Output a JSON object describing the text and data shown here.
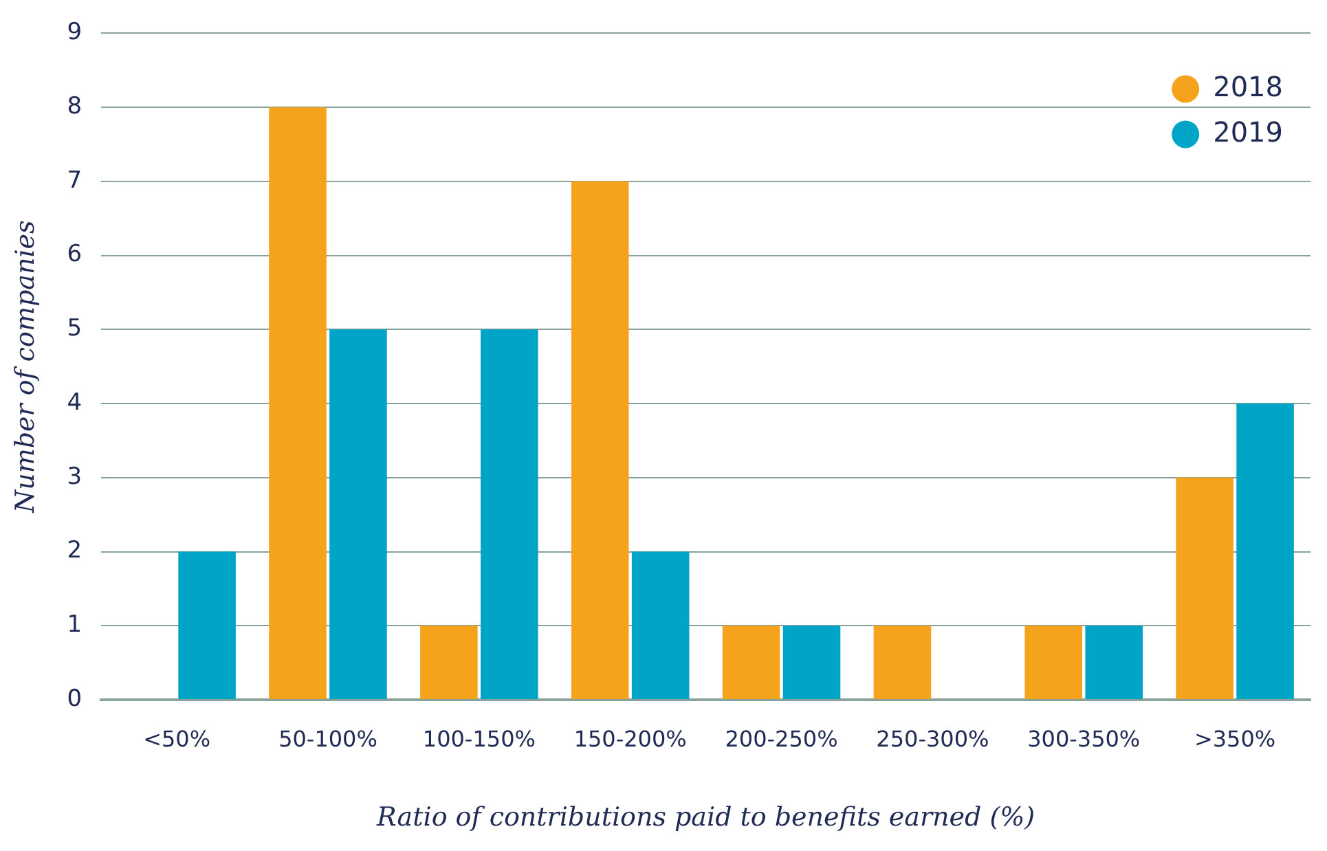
{
  "chart_data": {
    "type": "bar",
    "xlabel": "Ratio of contributions paid to benefits earned (%)",
    "ylabel": "Number of companies",
    "categories": [
      "<50%",
      "50-100%",
      "100-150%",
      "150-200%",
      "200-250%",
      "250-300%",
      "300-350%",
      ">350%"
    ],
    "series": [
      {
        "name": "2018",
        "color": "#f5a31c",
        "values": [
          0,
          8,
          1,
          7,
          1,
          1,
          1,
          3
        ]
      },
      {
        "name": "2019",
        "color": "#00a4c7",
        "values": [
          2,
          5,
          5,
          2,
          1,
          0,
          1,
          4
        ]
      }
    ],
    "ylim": [
      0,
      9
    ],
    "yticks": [
      0,
      1,
      2,
      3,
      4,
      5,
      6,
      7,
      8,
      9
    ],
    "grid": "y",
    "legend": "top right"
  }
}
